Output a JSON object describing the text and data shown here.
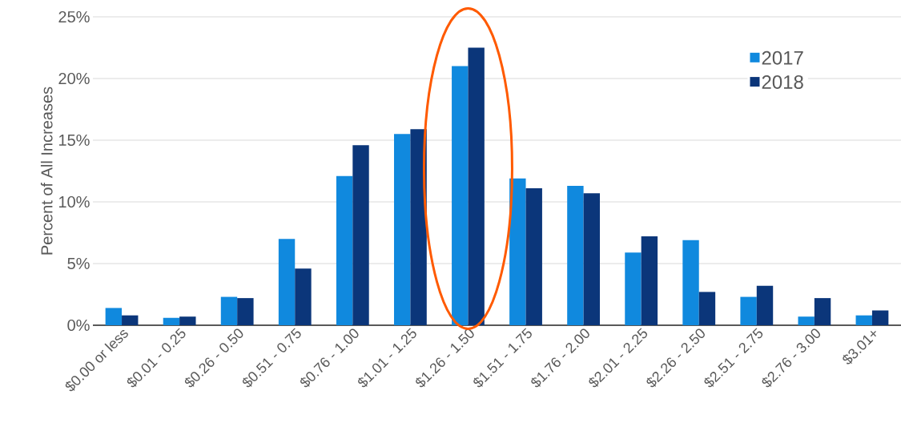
{
  "chart_data": {
    "type": "bar",
    "ylabel": "Percent of All Increases",
    "categories": [
      "$0.00 or less",
      "$0.01 - 0.25",
      "$0.26 - 0.50",
      "$0.51 - 0.75",
      "$0.76 - 1.00",
      "$1.01 - 1.25",
      "$1.26 - 1.50",
      "$1.51 - 1.75",
      "$1.76 - 2.00",
      "$2.01 - 2.25",
      "$2.26 - 2.50",
      "$2.51 - 2.75",
      "$2.76 - 3.00",
      "$3.01+"
    ],
    "series": [
      {
        "name": "2017",
        "color": "#1089de",
        "values": [
          1.4,
          0.6,
          2.3,
          7.0,
          12.1,
          15.5,
          21.0,
          11.9,
          11.3,
          5.9,
          6.9,
          2.3,
          0.7,
          0.8
        ]
      },
      {
        "name": "2018",
        "color": "#0b367a",
        "values": [
          0.8,
          0.7,
          2.2,
          4.6,
          14.6,
          15.9,
          22.5,
          11.1,
          10.7,
          7.2,
          2.7,
          3.2,
          2.2,
          1.2
        ]
      }
    ],
    "ylim": [
      0,
      25
    ],
    "yticks": [
      {
        "value": 0,
        "label": "0%"
      },
      {
        "value": 5,
        "label": "5%"
      },
      {
        "value": 10,
        "label": "10%"
      },
      {
        "value": 15,
        "label": "15%"
      },
      {
        "value": 20,
        "label": "20%"
      },
      {
        "value": 25,
        "label": "25%"
      }
    ],
    "grid": "y",
    "legend": "top right"
  }
}
